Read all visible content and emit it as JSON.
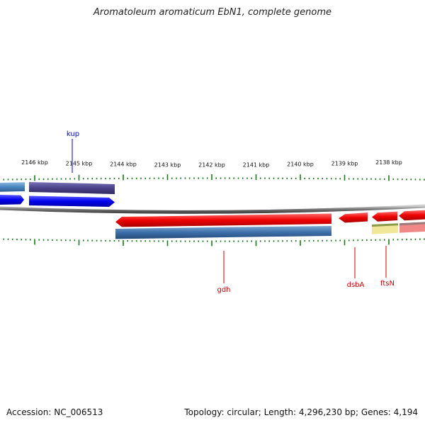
{
  "title": "Aromatoleum aromaticum EbN1, complete genome",
  "footer": {
    "accession": "Accession: NC_006513",
    "topology": "Topology: circular; Length: 4,296,230 bp; Genes: 4,194"
  },
  "colors": {
    "forward_cds": "#0000ee",
    "reverse_cds": "#ee0000",
    "forward_gene": "#4a4288",
    "reverse_gene": "#3c6ea8",
    "backbone": "#888888",
    "tick": "#1a7a1a",
    "label_forward": "#0000cc",
    "label_reverse": "#cc0000",
    "pale_gene": "#f0e898",
    "pink_gene": "#f08888"
  },
  "ticks": [
    {
      "label": "2146 kbp"
    },
    {
      "label": "2145 kbp"
    },
    {
      "label": "2144 kbp"
    },
    {
      "label": "2143 kbp"
    },
    {
      "label": "2142 kbp"
    },
    {
      "label": "2141 kbp"
    },
    {
      "label": "2140 kbp"
    },
    {
      "label": "2139 kbp"
    },
    {
      "label": "2138 kbp"
    }
  ],
  "genes": [
    {
      "name": "kup",
      "strand": "forward"
    },
    {
      "name": "gdh",
      "strand": "reverse"
    },
    {
      "name": "dsbA",
      "strand": "reverse"
    },
    {
      "name": "ftsN",
      "strand": "reverse"
    }
  ]
}
